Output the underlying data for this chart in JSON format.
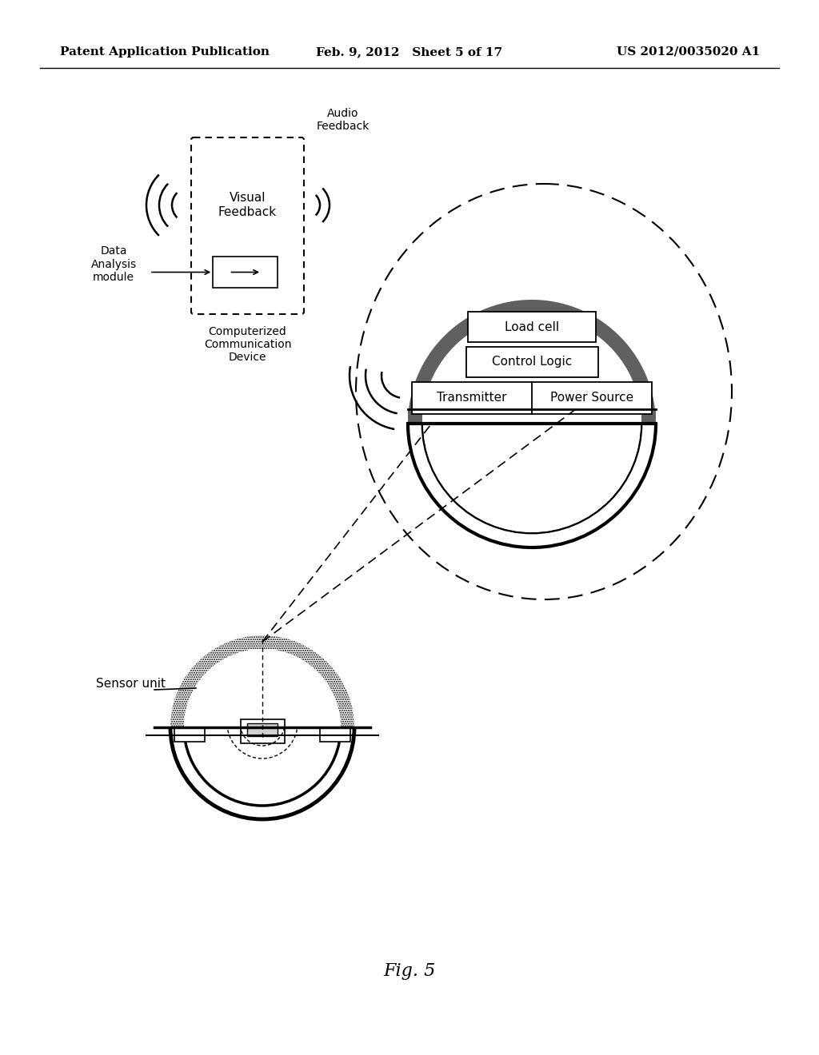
{
  "bg_color": "#ffffff",
  "text_color": "#000000",
  "header_left": "Patent Application Publication",
  "header_mid": "Feb. 9, 2012   Sheet 5 of 17",
  "header_right": "US 2012/0035020 A1",
  "fig_label": "Fig. 5"
}
